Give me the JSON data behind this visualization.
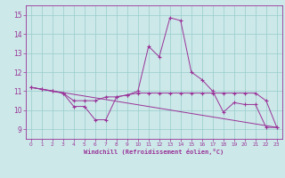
{
  "xlabel": "Windchill (Refroidissement éolien,°C)",
  "bg_color": "#cce8e8",
  "line_color": "#993399",
  "xlim": [
    -0.5,
    23.5
  ],
  "ylim": [
    8.5,
    15.5
  ],
  "xticks": [
    0,
    1,
    2,
    3,
    4,
    5,
    6,
    7,
    8,
    9,
    10,
    11,
    12,
    13,
    14,
    15,
    16,
    17,
    18,
    19,
    20,
    21,
    22,
    23
  ],
  "yticks": [
    9,
    10,
    11,
    12,
    13,
    14,
    15
  ],
  "line1_x": [
    0,
    1,
    2,
    3,
    4,
    5,
    6,
    7,
    8,
    9,
    10,
    11,
    12,
    13,
    14,
    15,
    16,
    17,
    18,
    19,
    20,
    21,
    22,
    23
  ],
  "line1_y": [
    11.2,
    11.1,
    11.0,
    10.9,
    10.2,
    10.2,
    9.5,
    9.5,
    10.7,
    10.8,
    11.0,
    13.35,
    12.8,
    14.85,
    14.7,
    12.0,
    11.6,
    11.0,
    9.9,
    10.4,
    10.3,
    10.3,
    9.1,
    9.1
  ],
  "line2_x": [
    0,
    1,
    2,
    3,
    4,
    5,
    6,
    7,
    8,
    9,
    10,
    11,
    12,
    13,
    14,
    15,
    16,
    17,
    18,
    19,
    20,
    21,
    22,
    23
  ],
  "line2_y": [
    11.2,
    11.1,
    11.0,
    10.9,
    10.5,
    10.5,
    10.5,
    10.7,
    10.7,
    10.8,
    10.9,
    10.9,
    10.9,
    10.9,
    10.9,
    10.9,
    10.9,
    10.9,
    10.9,
    10.9,
    10.9,
    10.9,
    10.5,
    9.1
  ],
  "line3_x": [
    0,
    23
  ],
  "line3_y": [
    11.2,
    9.1
  ],
  "grid_color": "#99cccc"
}
